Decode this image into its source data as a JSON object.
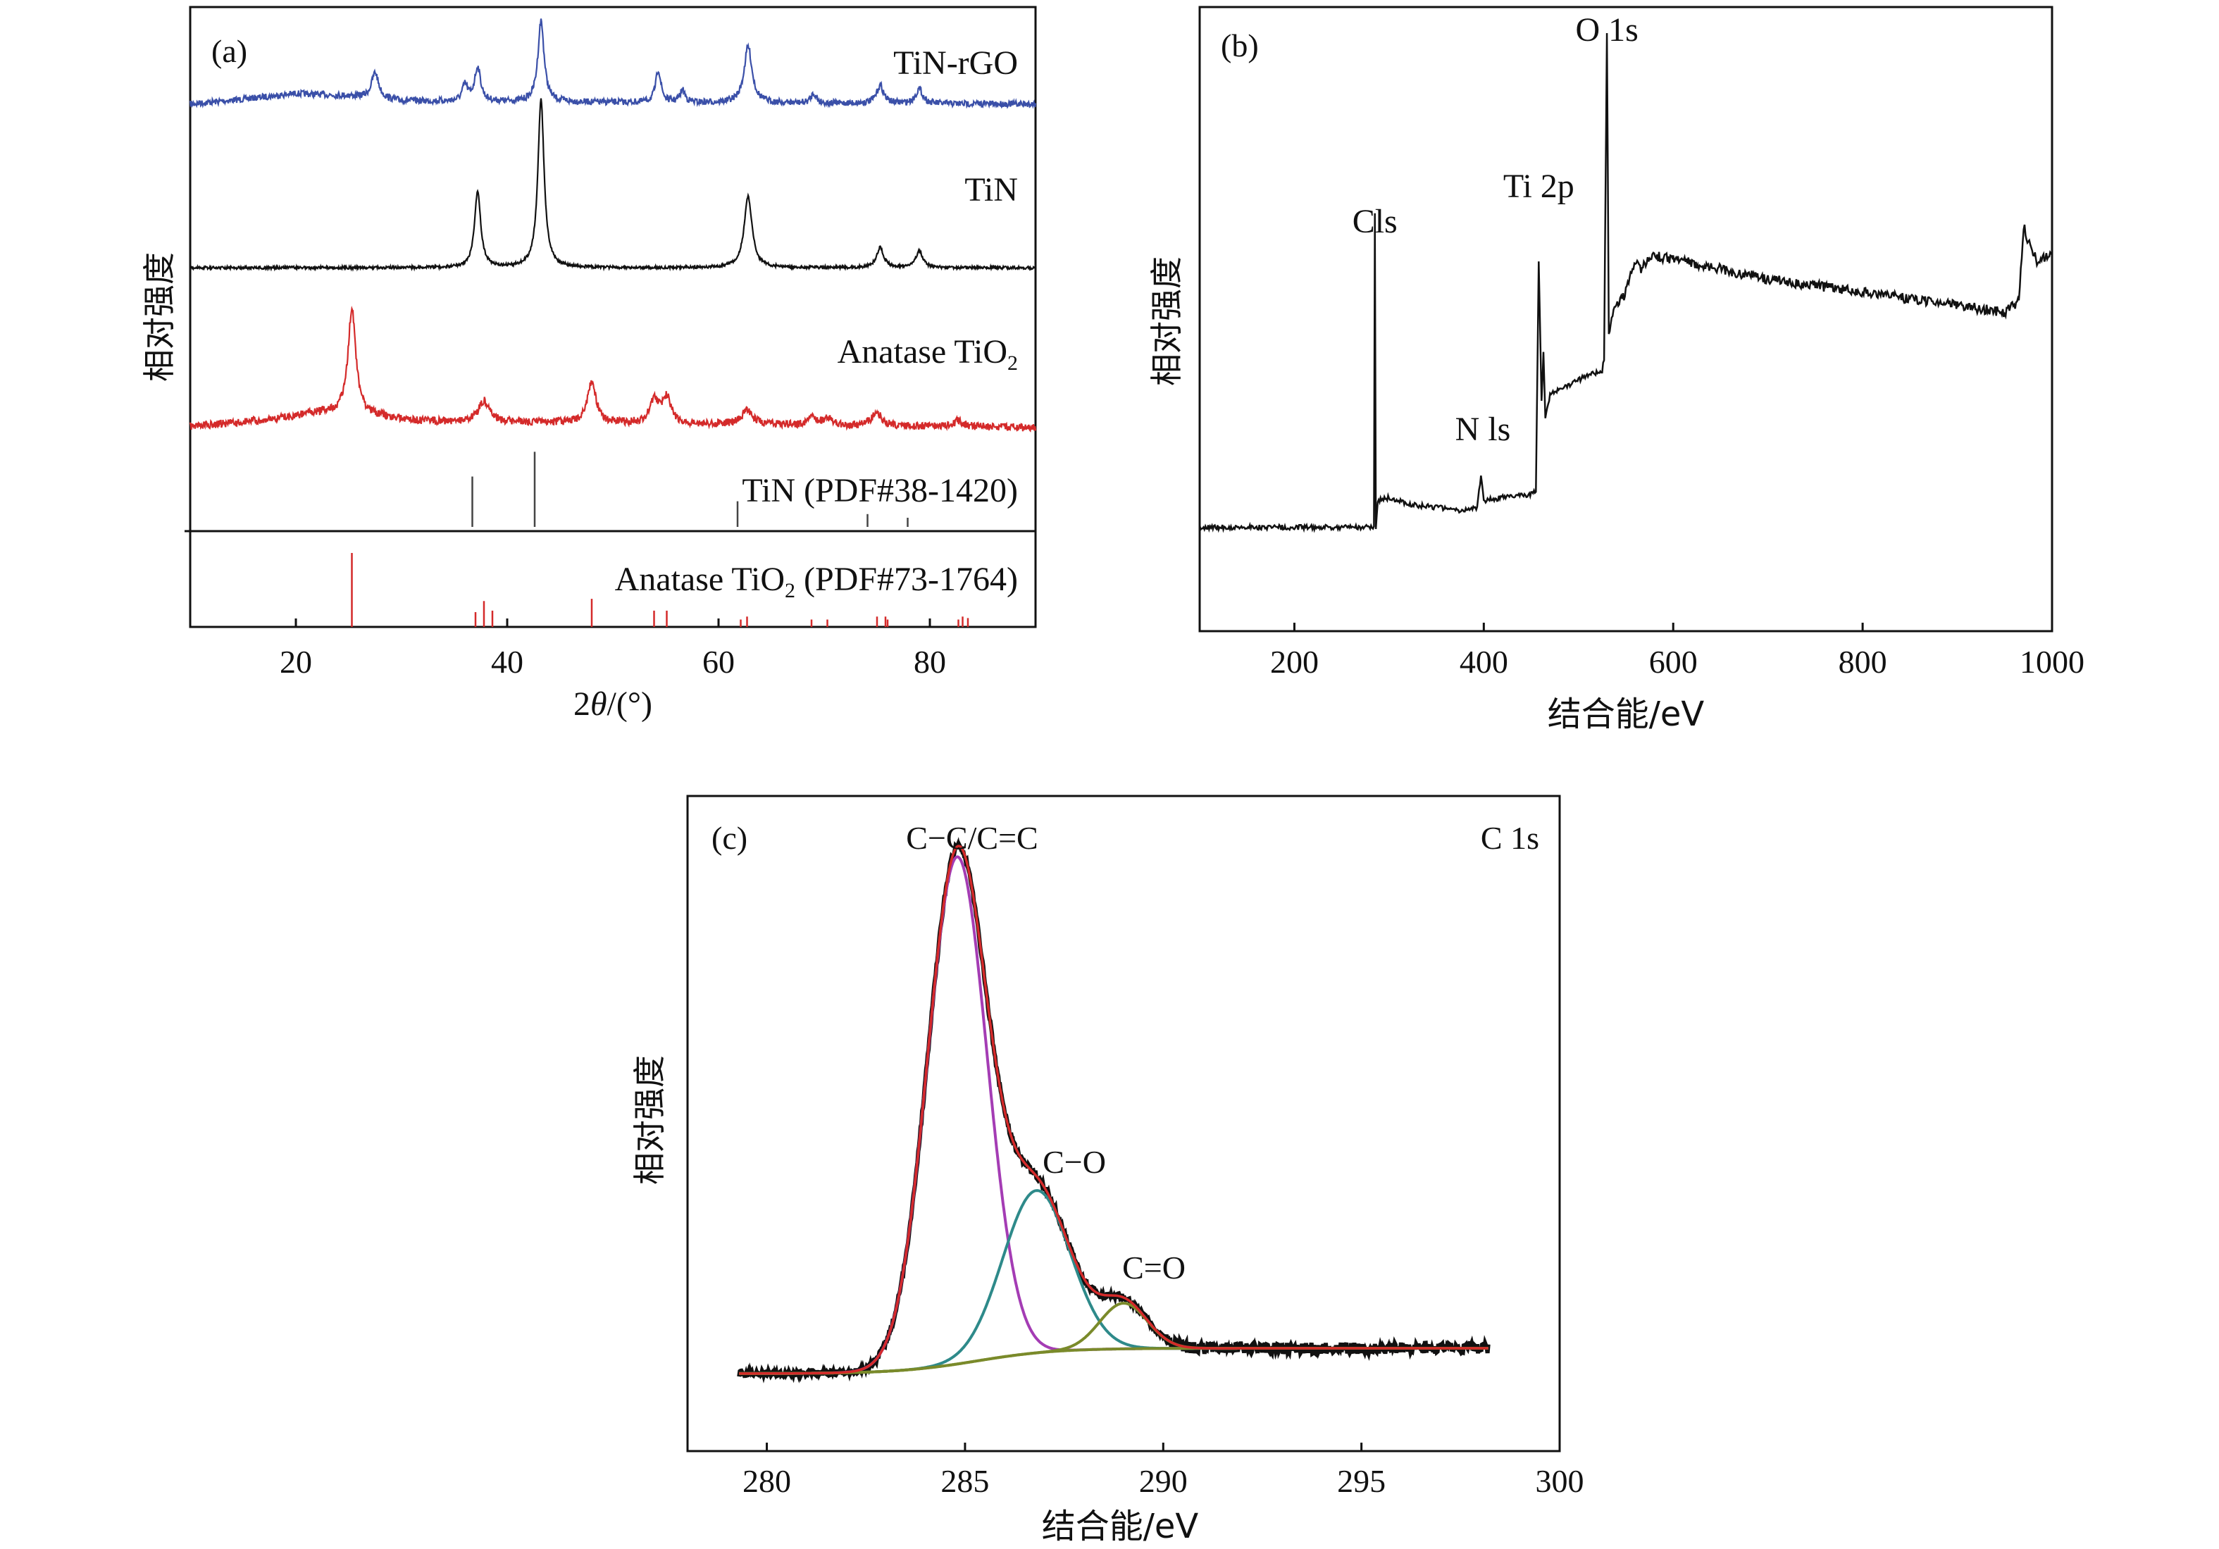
{
  "chart_data": [
    {
      "panel": "(a)",
      "type": "line",
      "xlabel_prefix": "2",
      "xlabel_theta": "θ",
      "xlabel_suffix": "/(°)",
      "ylabel": "相对强度",
      "xlim": [
        10,
        90
      ],
      "xticks": [
        20,
        40,
        60,
        80
      ],
      "series": [
        {
          "name": "TiN-rGO",
          "color": "#3a4fa8",
          "baseline": [
            [
              10,
              0.02
            ],
            [
              15,
              0.08
            ],
            [
              20,
              0.15
            ],
            [
              25,
              0.12
            ],
            [
              30,
              0.06
            ],
            [
              35,
              0.05
            ],
            [
              50,
              0.04
            ],
            [
              65,
              0.03
            ],
            [
              90,
              0.02
            ]
          ],
          "peaks": [
            [
              27.5,
              0.32,
              0.4
            ],
            [
              36.0,
              0.2,
              0.3
            ],
            [
              37.2,
              0.42,
              0.35
            ],
            [
              43.2,
              1.0,
              0.35
            ],
            [
              54.3,
              0.4,
              0.3
            ],
            [
              56.6,
              0.15,
              0.3
            ],
            [
              62.8,
              0.7,
              0.45
            ],
            [
              69.0,
              0.12,
              0.3
            ],
            [
              75.3,
              0.22,
              0.4
            ],
            [
              79.0,
              0.18,
              0.4
            ]
          ]
        },
        {
          "name": "TiN",
          "color": "#111111",
          "baseline": [
            [
              10,
              0.02
            ],
            [
              90,
              0.02
            ]
          ],
          "peaks": [
            [
              37.2,
              0.45,
              0.35
            ],
            [
              43.2,
              1.0,
              0.35
            ],
            [
              62.8,
              0.42,
              0.45
            ],
            [
              75.3,
              0.12,
              0.4
            ],
            [
              79.0,
              0.1,
              0.4
            ]
          ]
        },
        {
          "name_main": "Anatase TiO",
          "name_sub": "2",
          "color": "#d42a2a",
          "baseline": [
            [
              10,
              0.03
            ],
            [
              18,
              0.1
            ],
            [
              22,
              0.16
            ],
            [
              26,
              0.14
            ],
            [
              32,
              0.08
            ],
            [
              50,
              0.06
            ],
            [
              70,
              0.04
            ],
            [
              90,
              0.02
            ]
          ],
          "peaks": [
            [
              25.3,
              1.0,
              0.45
            ],
            [
              37.8,
              0.2,
              0.6
            ],
            [
              48.0,
              0.38,
              0.5
            ],
            [
              53.9,
              0.22,
              0.5
            ],
            [
              55.1,
              0.24,
              0.5
            ],
            [
              62.7,
              0.14,
              0.6
            ],
            [
              68.8,
              0.07,
              0.5
            ],
            [
              70.3,
              0.07,
              0.5
            ],
            [
              75.0,
              0.12,
              0.6
            ],
            [
              82.7,
              0.06,
              0.5
            ]
          ]
        }
      ],
      "reference_patterns": [
        {
          "label": "TiN (PDF#38-1420)",
          "color": "#444444",
          "lines": [
            [
              36.7,
              0.55
            ],
            [
              42.6,
              0.82
            ],
            [
              61.8,
              0.28
            ],
            [
              74.1,
              0.14
            ],
            [
              77.9,
              0.1
            ]
          ]
        },
        {
          "label_main": "Anatase TiO",
          "label_sub": "2",
          "label_tail": " (PDF#73-1764)",
          "color": "#d42a2a",
          "lines": [
            [
              25.3,
              1.0
            ],
            [
              37.0,
              0.2
            ],
            [
              37.8,
              0.35
            ],
            [
              38.6,
              0.22
            ],
            [
              48.0,
              0.38
            ],
            [
              53.9,
              0.22
            ],
            [
              55.1,
              0.22
            ],
            [
              62.7,
              0.14
            ],
            [
              62.1,
              0.1
            ],
            [
              68.8,
              0.1
            ],
            [
              70.3,
              0.1
            ],
            [
              75.0,
              0.14
            ],
            [
              75.8,
              0.14
            ],
            [
              76.0,
              0.1
            ],
            [
              82.7,
              0.1
            ],
            [
              83.1,
              0.14
            ],
            [
              83.6,
              0.12
            ]
          ]
        }
      ]
    },
    {
      "panel": "(b)",
      "type": "line",
      "xlabel": "结合能/eV",
      "ylabel": "相对强度",
      "xlim": [
        100,
        1000
      ],
      "xticks": [
        200,
        400,
        600,
        800,
        1000
      ],
      "color": "#111111",
      "spectrum": [
        [
          100,
          0.02
        ],
        [
          280,
          0.02
        ],
        [
          284,
          0.02
        ],
        [
          285,
          0.97
        ],
        [
          286,
          0.02
        ],
        [
          288,
          0.1
        ],
        [
          300,
          0.11
        ],
        [
          320,
          0.09
        ],
        [
          350,
          0.08
        ],
        [
          380,
          0.07
        ],
        [
          393,
          0.08
        ],
        [
          397,
          0.18
        ],
        [
          400,
          0.1
        ],
        [
          420,
          0.11
        ],
        [
          450,
          0.12
        ],
        [
          455,
          0.13
        ],
        [
          458,
          0.82
        ],
        [
          461,
          0.4
        ],
        [
          463,
          0.55
        ],
        [
          465,
          0.35
        ],
        [
          470,
          0.42
        ],
        [
          490,
          0.45
        ],
        [
          510,
          0.48
        ],
        [
          525,
          0.49
        ],
        [
          527,
          0.53
        ],
        [
          530,
          1.52
        ],
        [
          532,
          0.6
        ],
        [
          537,
          0.68
        ],
        [
          548,
          0.72
        ],
        [
          560,
          0.83
        ],
        [
          565,
          0.8
        ],
        [
          580,
          0.84
        ],
        [
          600,
          0.83
        ],
        [
          650,
          0.8
        ],
        [
          700,
          0.77
        ],
        [
          750,
          0.75
        ],
        [
          800,
          0.73
        ],
        [
          850,
          0.71
        ],
        [
          900,
          0.69
        ],
        [
          950,
          0.67
        ],
        [
          965,
          0.7
        ],
        [
          970,
          0.93
        ],
        [
          975,
          0.88
        ],
        [
          985,
          0.82
        ],
        [
          1000,
          0.85
        ]
      ],
      "annotations": [
        {
          "text": "Cls",
          "x": 285
        },
        {
          "text": "N ls",
          "x": 399
        },
        {
          "text": "Ti 2p",
          "x": 458
        },
        {
          "text": "O 1s",
          "x": 530
        }
      ]
    },
    {
      "panel": "(c)",
      "type": "line",
      "xlabel": "结合能/eV",
      "ylabel": "相对强度",
      "xlim": [
        278,
        300
      ],
      "xticks": [
        280,
        285,
        290,
        295,
        300
      ],
      "corner_label": "C 1s",
      "data_range": [
        279.3,
        298.2
      ],
      "components": [
        {
          "name": "C−C/C=C",
          "center": 284.8,
          "amplitude": 1.0,
          "sigma": 0.75,
          "color": "#a43cb4"
        },
        {
          "name": "C−O",
          "center": 286.8,
          "amplitude": 0.32,
          "sigma": 0.85,
          "color": "#2e8a8a"
        },
        {
          "name": "C=O",
          "center": 289.0,
          "amplitude": 0.09,
          "sigma": 0.6,
          "color": "#7a8a2a"
        }
      ],
      "background": {
        "low": 0.0,
        "high": 0.05,
        "step_center": 285.3,
        "step_width": 1.0,
        "color": "#7a8a2a"
      },
      "raw_color": "#111111",
      "fit_color": "#d42a2a"
    }
  ]
}
